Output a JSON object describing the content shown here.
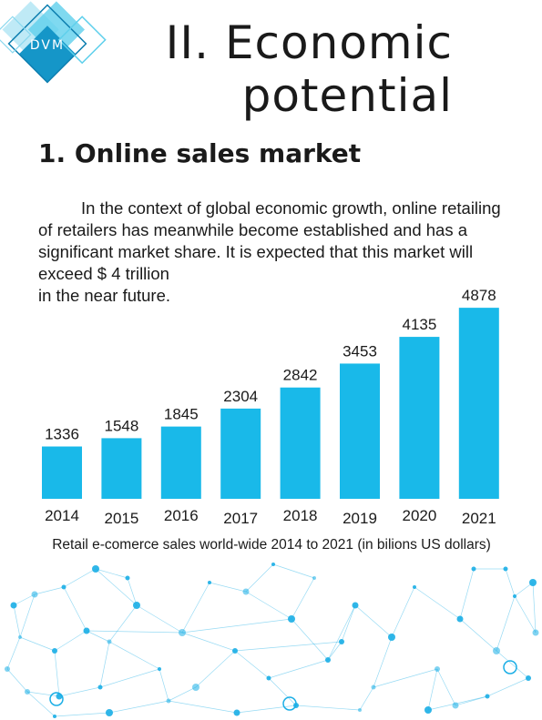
{
  "logo": {
    "text": "DVM"
  },
  "header": {
    "title": "II. Economic potential"
  },
  "section": {
    "heading": "1. Online sales market",
    "paragraph1": "In the context of global economic growth, online retailing of retailers has meanwhile become established and has a significant market share. It is expected that this market will exceed $ 4 trillion",
    "paragraph2": "in the near future."
  },
  "colors": {
    "bar": "#19b9e9",
    "network": "#1aaee6",
    "logo_dark": "#1596c8",
    "logo_light": "#5fd0ec"
  },
  "chart_data": {
    "type": "bar",
    "title": "",
    "caption": "Retail e-comerce sales world-wide 2014 to 2021 (in bilions US dollars)",
    "categories": [
      "2014",
      "2015",
      "2016",
      "2017",
      "2018",
      "2019",
      "2020",
      "2021"
    ],
    "values": [
      1336,
      1548,
      1845,
      2304,
      2842,
      3453,
      4135,
      4878
    ],
    "ylim": [
      0,
      5000
    ],
    "grid": false,
    "data_labels": true
  }
}
